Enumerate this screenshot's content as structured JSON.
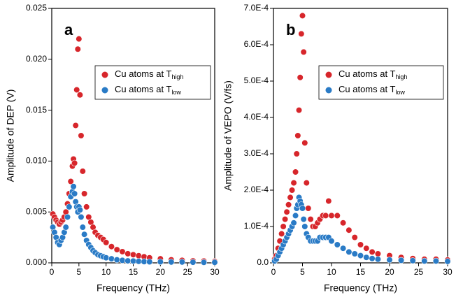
{
  "chart_data": [
    {
      "type": "scatter",
      "label": "a",
      "xlabel": "Frequency (THz)",
      "ylabel": "Amplitude of DEP (V)",
      "xlim": [
        0,
        30
      ],
      "xticks": [
        0,
        5,
        10,
        15,
        20,
        25,
        30
      ],
      "ylim": [
        0,
        0.025
      ],
      "yticks": [
        {
          "value": 0,
          "label": "0.000"
        },
        0.005,
        {
          "value": 0.01,
          "label": "0.010"
        },
        0.015,
        {
          "value": 0.02,
          "label": "0.020"
        },
        0.025
      ],
      "legend": "upper right",
      "x": [
        0.2,
        0.5,
        0.8,
        1.1,
        1.4,
        1.7,
        2.0,
        2.3,
        2.6,
        2.9,
        3.2,
        3.5,
        3.8,
        4.0,
        4.2,
        4.4,
        4.6,
        4.8,
        5.0,
        5.2,
        5.4,
        5.7,
        6.0,
        6.4,
        6.8,
        7.2,
        7.6,
        8.0,
        8.5,
        9.0,
        9.5,
        10,
        11,
        12,
        13,
        14,
        15,
        16,
        17,
        18,
        20,
        22,
        24,
        26,
        28,
        30
      ],
      "series": [
        {
          "name": "Cu atoms at T",
          "subscript": "high",
          "color": "#d7262b",
          "values": [
            0.0048,
            0.0045,
            0.0042,
            0.004,
            0.0038,
            0.004,
            0.0042,
            0.0045,
            0.005,
            0.0058,
            0.0068,
            0.008,
            0.0095,
            0.0102,
            0.0098,
            0.0135,
            0.017,
            0.021,
            0.022,
            0.0165,
            0.0125,
            0.009,
            0.0068,
            0.0055,
            0.0045,
            0.004,
            0.0035,
            0.003,
            0.0027,
            0.0025,
            0.0023,
            0.002,
            0.0016,
            0.0013,
            0.0011,
            0.0009,
            0.0008,
            0.0007,
            0.0006,
            0.0005,
            0.0004,
            0.0003,
            0.00025,
            0.0002,
            0.00018,
            0.00015
          ]
        },
        {
          "name": "Cu atoms at T",
          "subscript": "low",
          "color": "#2a7bc6",
          "values": [
            0.0035,
            0.003,
            0.0025,
            0.002,
            0.0018,
            0.0022,
            0.0025,
            0.003,
            0.0035,
            0.0045,
            0.0055,
            0.0065,
            0.007,
            0.0075,
            0.0068,
            0.006,
            0.0055,
            0.005,
            0.0055,
            0.0052,
            0.0045,
            0.0035,
            0.0028,
            0.0022,
            0.0018,
            0.0015,
            0.0012,
            0.001,
            0.0008,
            0.0007,
            0.0006,
            0.0005,
            0.0004,
            0.0003,
            0.00025,
            0.0002,
            0.00018,
            0.00015,
            0.00012,
            0.0001,
            0.0001,
            8e-05,
            8e-05,
            6e-05,
            5e-05,
            5e-05
          ]
        }
      ]
    },
    {
      "type": "scatter",
      "label": "b",
      "xlabel": "Frequency (THz)",
      "ylabel": "Amplitude of VEPO (V/fs)",
      "xlim": [
        0,
        30
      ],
      "xticks": [
        0,
        5,
        10,
        15,
        20,
        25,
        30
      ],
      "ylim": [
        0,
        0.0007
      ],
      "yticks": [
        {
          "value": 0,
          "label": "0.0"
        },
        {
          "value": 0.0001,
          "label": "1.0E-4"
        },
        {
          "value": 0.0002,
          "label": "2.0E-4"
        },
        {
          "value": 0.0003,
          "label": "3.0E-4"
        },
        {
          "value": 0.0004,
          "label": "4.0E-4"
        },
        {
          "value": 0.0005,
          "label": "5.0E-4"
        },
        {
          "value": 0.0006,
          "label": "6.0E-4"
        },
        {
          "value": 0.0007,
          "label": "7.0E-4"
        }
      ],
      "legend": "upper right",
      "x": [
        0.2,
        0.5,
        0.8,
        1.1,
        1.4,
        1.7,
        2.0,
        2.3,
        2.6,
        2.9,
        3.2,
        3.5,
        3.8,
        4.0,
        4.2,
        4.4,
        4.6,
        4.8,
        5.0,
        5.2,
        5.4,
        5.7,
        6.0,
        6.4,
        6.8,
        7.2,
        7.6,
        8.0,
        8.5,
        9.0,
        9.5,
        10,
        11,
        12,
        13,
        14,
        15,
        16,
        17,
        18,
        20,
        22,
        24,
        26,
        28,
        30
      ],
      "series": [
        {
          "name": "Cu atoms at T",
          "subscript": "high",
          "color": "#d7262b",
          "values": [
            1e-05,
            2e-05,
            4e-05,
            6e-05,
            8e-05,
            0.0001,
            0.00012,
            0.00014,
            0.00016,
            0.00018,
            0.0002,
            0.00022,
            0.00025,
            0.0003,
            0.00035,
            0.00042,
            0.00051,
            0.00063,
            0.00068,
            0.00058,
            0.00033,
            0.00022,
            0.00015,
            0.00012,
            0.0001,
            0.0001,
            0.00011,
            0.00012,
            0.00013,
            0.00013,
            0.00017,
            0.00013,
            0.00013,
            0.00011,
            9e-05,
            7e-05,
            5e-05,
            4e-05,
            3e-05,
            2.5e-05,
            2e-05,
            1.5e-05,
            1.2e-05,
            1e-05,
            1e-05,
            8e-06
          ]
        },
        {
          "name": "Cu atoms at T",
          "subscript": "low",
          "color": "#2a7bc6",
          "values": [
            5e-06,
            1e-05,
            2e-05,
            3e-05,
            4e-05,
            5e-05,
            6e-05,
            7e-05,
            8e-05,
            9e-05,
            0.0001,
            0.00011,
            0.00013,
            0.00015,
            0.00016,
            0.00018,
            0.00017,
            0.00016,
            0.00015,
            0.00012,
            0.0001,
            8e-05,
            7e-05,
            6e-05,
            6e-05,
            6e-05,
            6e-05,
            7e-05,
            7e-05,
            7e-05,
            7e-05,
            6e-05,
            5e-05,
            4e-05,
            3e-05,
            2.5e-05,
            2e-05,
            1.5e-05,
            1.2e-05,
            1e-05,
            8e-06,
            7e-06,
            6e-06,
            5e-06,
            5e-06,
            4e-06
          ]
        }
      ]
    }
  ]
}
